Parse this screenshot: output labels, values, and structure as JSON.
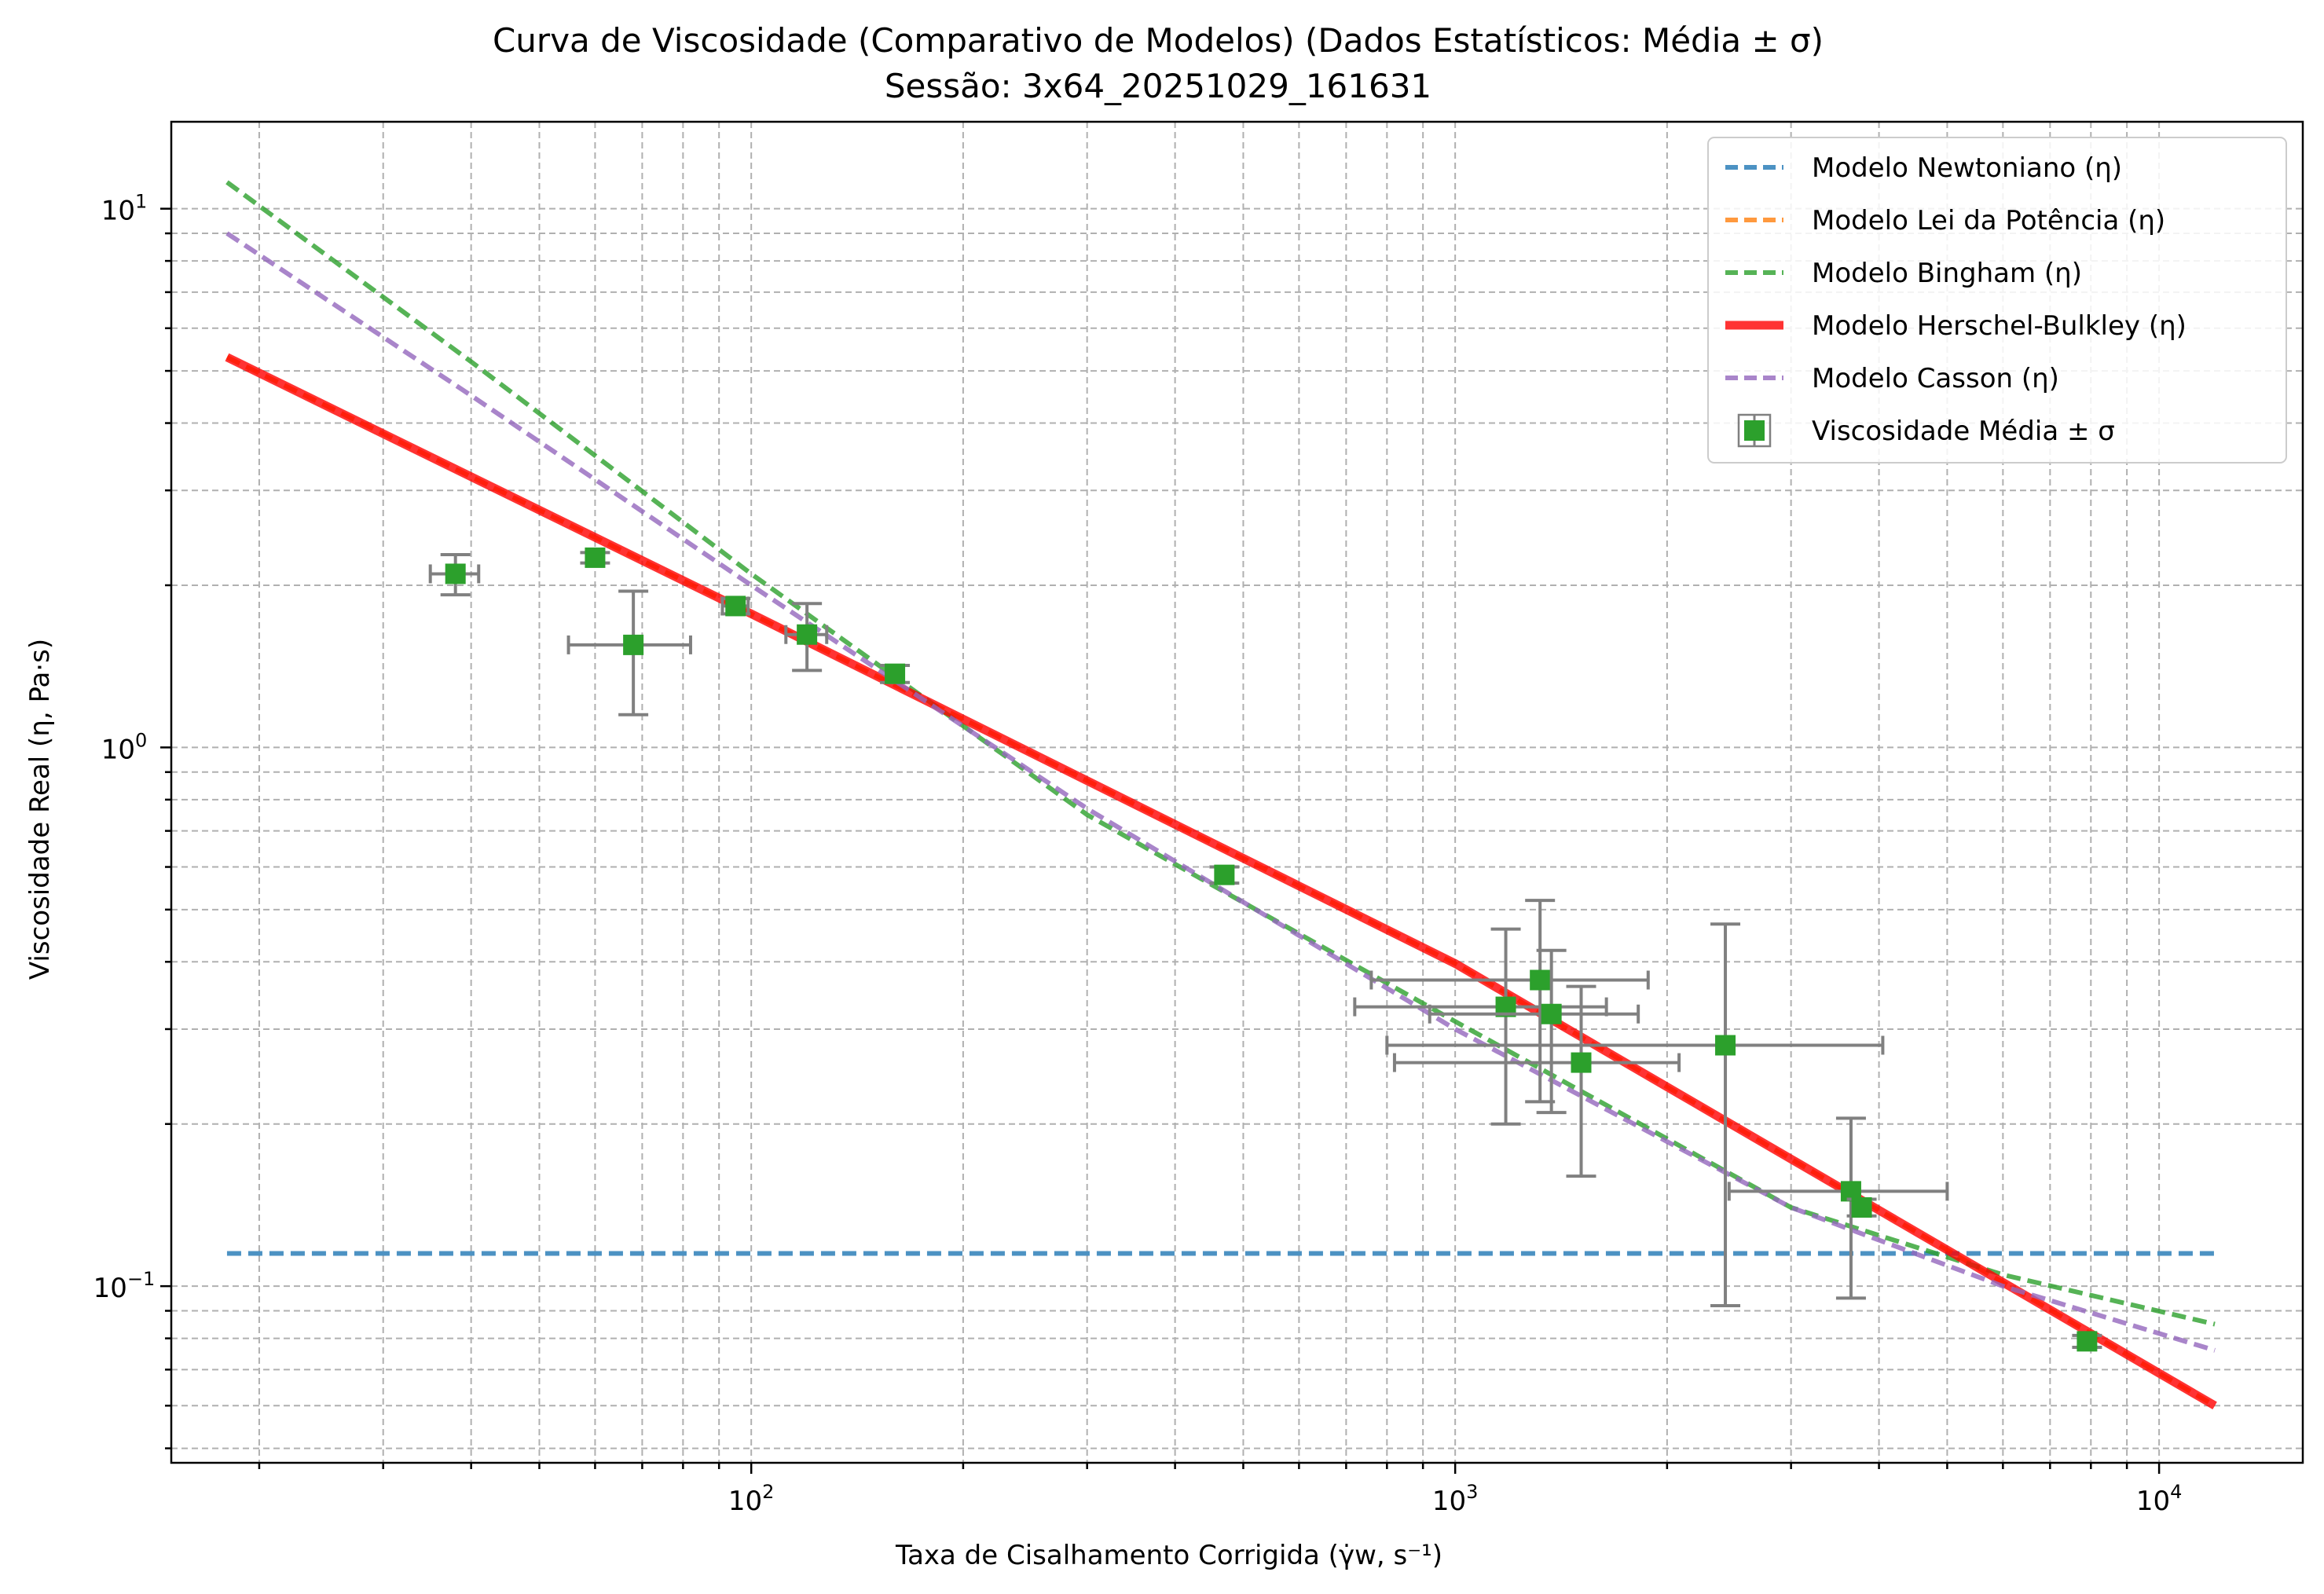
{
  "chart_data": {
    "type": "scatter",
    "title": "Curva de Viscosidade (Comparativo de Modelos) (Dados Estatísticos: Média ± σ)",
    "subtitle": "Sessão: 3x64_20251029_161631",
    "xlabel": "Taxa de Cisalhamento Corrigida (γ̇w, s⁻¹)",
    "ylabel": "Viscosidade Real (η, Pa·s)",
    "x_scale": "log",
    "y_scale": "log",
    "xlim": [
      15,
      16000
    ],
    "ylim": [
      0.047,
      14.5
    ],
    "grid": "major and minor, dashed",
    "legend_position": "top-right",
    "x_ticks": [
      {
        "value": 100,
        "base": "10",
        "exp": "2"
      },
      {
        "value": 1000,
        "base": "10",
        "exp": "3"
      },
      {
        "value": 10000,
        "base": "10",
        "exp": "4"
      }
    ],
    "y_ticks": [
      {
        "value": 0.1,
        "base": "10",
        "exp": "−1"
      },
      {
        "value": 1,
        "base": "10",
        "exp": "0"
      },
      {
        "value": 10,
        "base": "10",
        "exp": "1"
      }
    ],
    "series": [
      {
        "name": "Modelo Newtoniano (η)",
        "color": "#1f77b4",
        "style": "dashed",
        "x": [
          18,
          12000
        ],
        "y": [
          0.115,
          0.115
        ]
      },
      {
        "name": "Modelo Lei da Potência (η)",
        "color": "#ff7f0e",
        "style": "dashed",
        "x": [
          18,
          100,
          1000,
          12000
        ],
        "y": [
          5.3,
          1.77,
          0.397,
          0.06
        ]
      },
      {
        "name": "Modelo Bingham (η)",
        "color": "#2ca02c",
        "style": "dashed",
        "x": [
          18,
          40,
          100,
          300,
          1000,
          3000,
          6000,
          12000
        ],
        "y": [
          11.2,
          5.2,
          2.1,
          0.75,
          0.31,
          0.14,
          0.105,
          0.085
        ]
      },
      {
        "name": "Modelo Herschel-Bulkley (η)",
        "color": "#ff0000",
        "style": "solid",
        "x": [
          18,
          100,
          1000,
          12000
        ],
        "y": [
          5.3,
          1.77,
          0.397,
          0.06
        ]
      },
      {
        "name": "Modelo Casson (η)",
        "color": "#9467bd",
        "style": "dashed",
        "x": [
          18,
          40,
          100,
          300,
          1000,
          3000,
          6000,
          12000
        ],
        "y": [
          9.0,
          4.5,
          2.0,
          0.77,
          0.3,
          0.14,
          0.1,
          0.076
        ]
      }
    ],
    "points": {
      "name": "Viscosidade Média ± σ",
      "color": "#2ca02c",
      "error_color": "#808080",
      "data": [
        {
          "x": 38,
          "y": 2.1,
          "x_err": [
            35,
            41
          ],
          "y_err": [
            1.92,
            2.28
          ]
        },
        {
          "x": 60,
          "y": 2.25,
          "x_err": [
            60,
            60
          ],
          "y_err": [
            2.2,
            2.3
          ]
        },
        {
          "x": 68,
          "y": 1.55,
          "x_err": [
            55,
            82
          ],
          "y_err": [
            1.15,
            1.95
          ]
        },
        {
          "x": 95,
          "y": 1.83,
          "x_err": [
            91,
            99
          ],
          "y_err": [
            1.77,
            1.89
          ]
        },
        {
          "x": 120,
          "y": 1.62,
          "x_err": [
            112,
            128
          ],
          "y_err": [
            1.39,
            1.85
          ]
        },
        {
          "x": 160,
          "y": 1.37,
          "x_err": [
            160,
            160
          ],
          "y_err": [
            1.32,
            1.42
          ]
        },
        {
          "x": 470,
          "y": 0.58,
          "x_err": [
            470,
            470
          ],
          "y_err": [
            0.56,
            0.6
          ]
        },
        {
          "x": 1180,
          "y": 0.33,
          "x_err": [
            720,
            1640
          ],
          "y_err": [
            0.2,
            0.46
          ]
        },
        {
          "x": 1320,
          "y": 0.37,
          "x_err": [
            760,
            1880
          ],
          "y_err": [
            0.22,
            0.52
          ]
        },
        {
          "x": 1370,
          "y": 0.32,
          "x_err": [
            920,
            1820
          ],
          "y_err": [
            0.21,
            0.42
          ]
        },
        {
          "x": 1510,
          "y": 0.26,
          "x_err": [
            820,
            2080
          ],
          "y_err": [
            0.16,
            0.36
          ]
        },
        {
          "x": 2420,
          "y": 0.28,
          "x_err": [
            800,
            4050
          ],
          "y_err": [
            0.092,
            0.47
          ]
        },
        {
          "x": 3650,
          "y": 0.15,
          "x_err": [
            2450,
            5000
          ],
          "y_err": [
            0.095,
            0.205
          ]
        },
        {
          "x": 3780,
          "y": 0.14,
          "x_err": [
            3780,
            3780
          ],
          "y_err": [
            0.135,
            0.145
          ]
        },
        {
          "x": 7900,
          "y": 0.079,
          "x_err": [
            7900,
            7900
          ],
          "y_err": [
            0.077,
            0.081
          ]
        }
      ]
    }
  }
}
